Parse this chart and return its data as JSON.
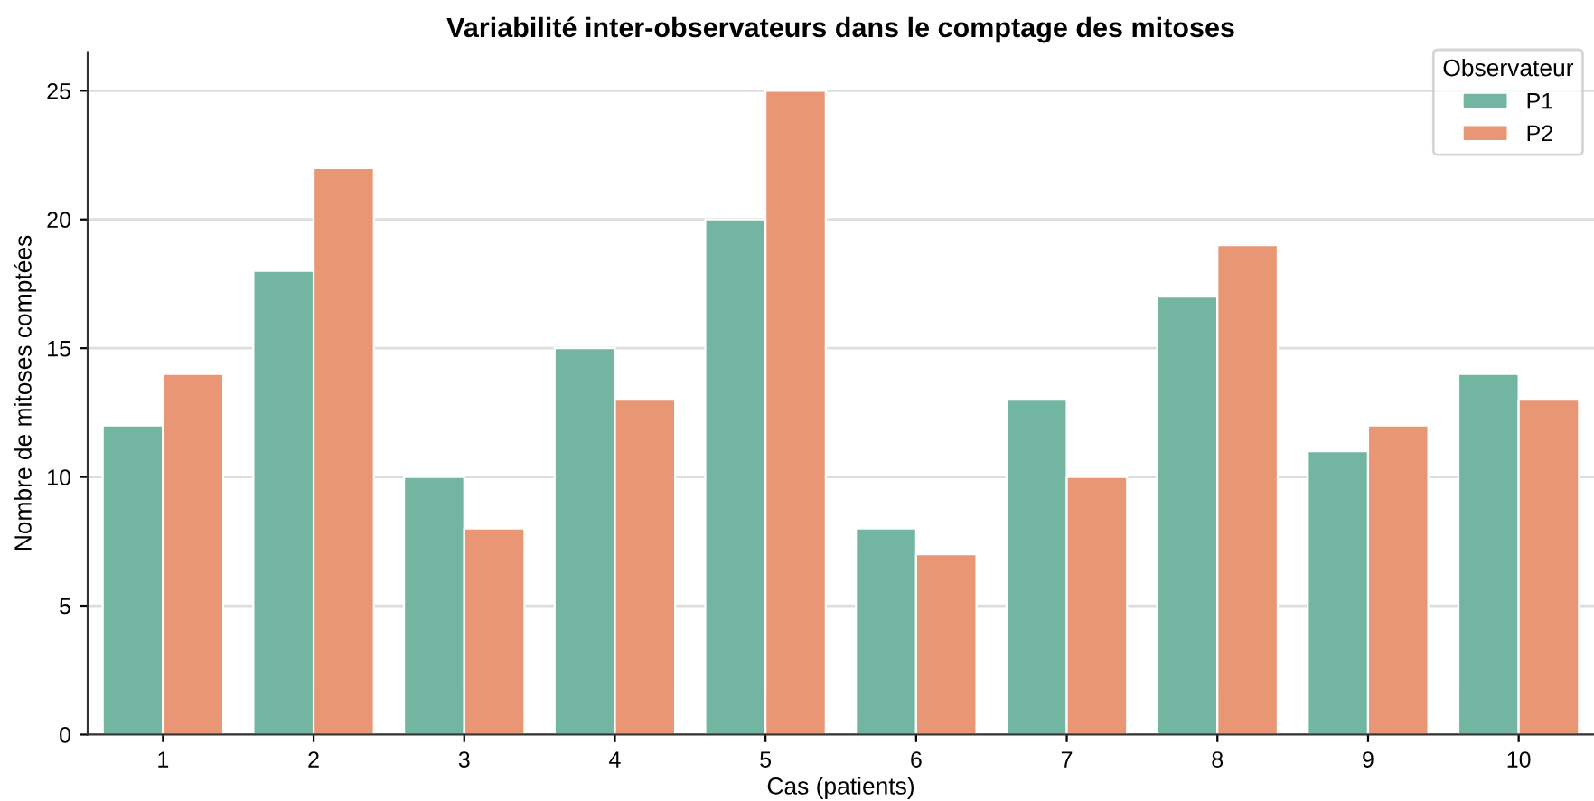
{
  "chart_data": {
    "type": "bar",
    "title": "Variabilité inter-observateurs dans le comptage des mitoses",
    "xlabel": "Cas (patients)",
    "ylabel": "Nombre de mitoses comptées",
    "legend_title": "Observateur",
    "categories": [
      "1",
      "2",
      "3",
      "4",
      "5",
      "6",
      "7",
      "8",
      "9",
      "10"
    ],
    "series": [
      {
        "name": "P1",
        "color": "#72b6a1",
        "values": [
          12,
          18,
          10,
          15,
          20,
          8,
          13,
          17,
          11,
          14
        ]
      },
      {
        "name": "P2",
        "color": "#e99675",
        "values": [
          14,
          22,
          8,
          13,
          25,
          7,
          10,
          19,
          12,
          13
        ]
      }
    ],
    "ylim": [
      0,
      26.5
    ],
    "yticks": [
      0,
      5,
      10,
      15,
      20,
      25
    ],
    "grid": "y",
    "legend": "top right"
  }
}
